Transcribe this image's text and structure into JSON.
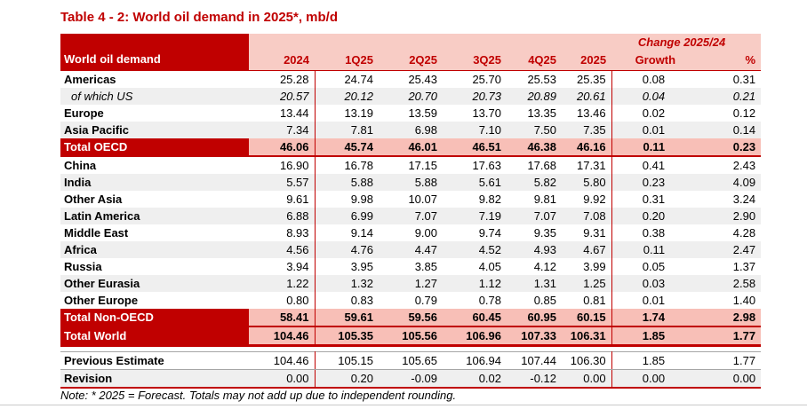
{
  "title": "Table 4 - 2: World oil demand in 2025*, mb/d",
  "colors": {
    "dark_red": "#C00000",
    "header_pink": "#F8CCC5",
    "total_row_pink": "#F8BFB7",
    "stripe_gray": "#EFEFEF"
  },
  "table": {
    "corner_label": "World oil demand",
    "change_header": "Change 2025/24",
    "columns": [
      "2024",
      "1Q25",
      "2Q25",
      "3Q25",
      "4Q25",
      "2025",
      "Growth",
      "%"
    ],
    "rows": [
      {
        "label": "Americas",
        "style": "plain",
        "stripe": false,
        "values": [
          "25.28",
          "24.74",
          "25.43",
          "25.70",
          "25.53",
          "25.35",
          "0.08",
          "0.31"
        ]
      },
      {
        "label": "of which US",
        "style": "sub",
        "stripe": true,
        "values": [
          "20.57",
          "20.12",
          "20.70",
          "20.73",
          "20.89",
          "20.61",
          "0.04",
          "0.21"
        ]
      },
      {
        "label": "Europe",
        "style": "plain",
        "stripe": false,
        "values": [
          "13.44",
          "13.19",
          "13.59",
          "13.70",
          "13.35",
          "13.46",
          "0.02",
          "0.12"
        ]
      },
      {
        "label": "Asia Pacific",
        "style": "plain",
        "stripe": true,
        "values": [
          "7.34",
          "7.81",
          "6.98",
          "7.10",
          "7.50",
          "7.35",
          "0.01",
          "0.14"
        ]
      },
      {
        "label": "Total OECD",
        "style": "total",
        "stripe": false,
        "values": [
          "46.06",
          "45.74",
          "46.01",
          "46.51",
          "46.38",
          "46.16",
          "0.11",
          "0.23"
        ]
      },
      {
        "label": "China",
        "style": "plain",
        "stripe": false,
        "values": [
          "16.90",
          "16.78",
          "17.15",
          "17.63",
          "17.68",
          "17.31",
          "0.41",
          "2.43"
        ]
      },
      {
        "label": "India",
        "style": "plain",
        "stripe": true,
        "values": [
          "5.57",
          "5.88",
          "5.88",
          "5.61",
          "5.82",
          "5.80",
          "0.23",
          "4.09"
        ]
      },
      {
        "label": "Other Asia",
        "style": "plain",
        "stripe": false,
        "values": [
          "9.61",
          "9.98",
          "10.07",
          "9.82",
          "9.81",
          "9.92",
          "0.31",
          "3.24"
        ]
      },
      {
        "label": "Latin America",
        "style": "plain",
        "stripe": true,
        "values": [
          "6.88",
          "6.99",
          "7.07",
          "7.19",
          "7.07",
          "7.08",
          "0.20",
          "2.90"
        ]
      },
      {
        "label": "Middle East",
        "style": "plain",
        "stripe": false,
        "values": [
          "8.93",
          "9.14",
          "9.00",
          "9.74",
          "9.35",
          "9.31",
          "0.38",
          "4.28"
        ]
      },
      {
        "label": "Africa",
        "style": "plain",
        "stripe": true,
        "values": [
          "4.56",
          "4.76",
          "4.47",
          "4.52",
          "4.93",
          "4.67",
          "0.11",
          "2.47"
        ]
      },
      {
        "label": "Russia",
        "style": "plain",
        "stripe": false,
        "values": [
          "3.94",
          "3.95",
          "3.85",
          "4.05",
          "4.12",
          "3.99",
          "0.05",
          "1.37"
        ]
      },
      {
        "label": "Other Eurasia",
        "style": "plain",
        "stripe": true,
        "values": [
          "1.22",
          "1.32",
          "1.27",
          "1.12",
          "1.31",
          "1.25",
          "0.03",
          "2.58"
        ]
      },
      {
        "label": "Other Europe",
        "style": "plain",
        "stripe": false,
        "values": [
          "0.80",
          "0.83",
          "0.79",
          "0.78",
          "0.85",
          "0.81",
          "0.01",
          "1.40"
        ]
      },
      {
        "label": "Total Non-OECD",
        "style": "total",
        "stripe": false,
        "values": [
          "58.41",
          "59.61",
          "59.56",
          "60.45",
          "60.95",
          "60.15",
          "1.74",
          "2.98"
        ]
      },
      {
        "label": "Total World",
        "style": "grand",
        "stripe": false,
        "values": [
          "104.46",
          "105.35",
          "105.56",
          "106.96",
          "107.33",
          "106.31",
          "1.85",
          "1.77"
        ]
      },
      {
        "label": "Previous Estimate",
        "style": "estimate",
        "stripe": false,
        "values": [
          "104.46",
          "105.15",
          "105.65",
          "106.94",
          "107.44",
          "106.30",
          "1.85",
          "1.77"
        ]
      },
      {
        "label": "Revision",
        "style": "revision",
        "stripe": true,
        "values": [
          "0.00",
          "0.20",
          "-0.09",
          "0.02",
          "-0.12",
          "0.00",
          "0.00",
          "0.00"
        ]
      }
    ]
  },
  "note": "Note: * 2025 = Forecast. Totals may not add up due to independent rounding."
}
